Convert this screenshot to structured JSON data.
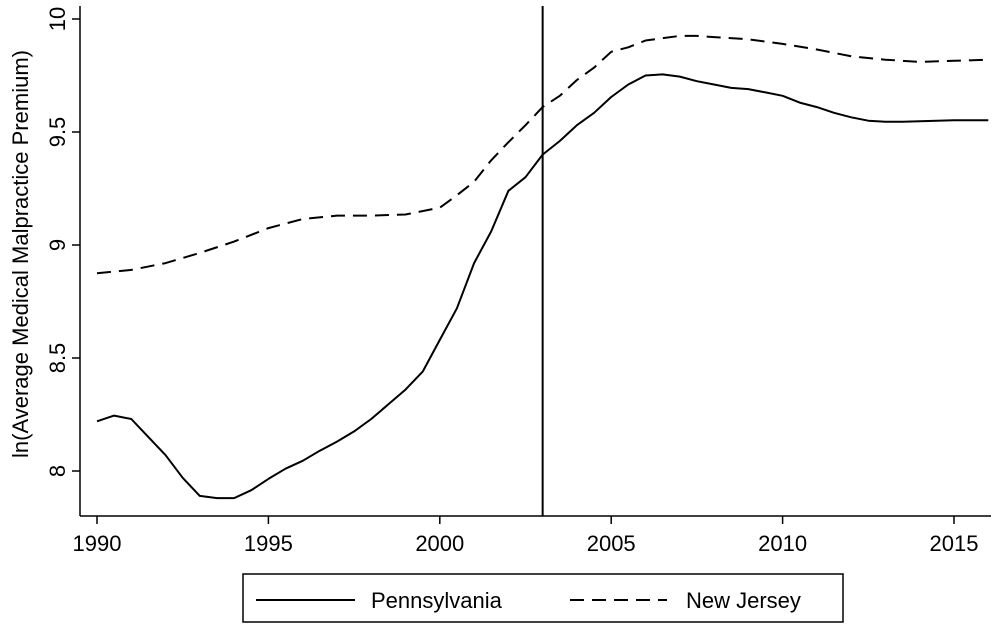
{
  "chart_data": {
    "type": "line",
    "title": "",
    "xlabel": "",
    "ylabel": "ln(Average Medical Malpractice Premium)",
    "xlim": [
      1990,
      2016
    ],
    "ylim": [
      7.8,
      10.05
    ],
    "xticks": [
      1990,
      1995,
      2000,
      2005,
      2010,
      2015
    ],
    "yticks": [
      8,
      8.5,
      9,
      9.5,
      10
    ],
    "ytick_labels": [
      "8",
      "8.5",
      "9",
      "9.5",
      "10"
    ],
    "xtick_labels": [
      "1990",
      "1995",
      "2000",
      "2005",
      "2010",
      "2015"
    ],
    "grid": false,
    "legend_position": "bottom",
    "vertical_reference_line": 2003,
    "series": [
      {
        "name": "Pennsylvania",
        "style": "solid",
        "color": "#000000",
        "x": [
          1990,
          1990.5,
          1991,
          1991.5,
          1992,
          1992.5,
          1993,
          1993.5,
          1994,
          1994.5,
          1995,
          1995.5,
          1996,
          1996.5,
          1997,
          1997.5,
          1998,
          1998.5,
          1999,
          1999.5,
          2000,
          2000.5,
          2001,
          2001.5,
          2002,
          2002.5,
          2003,
          2003.5,
          2004,
          2004.5,
          2005,
          2005.5,
          2006,
          2006.5,
          2007,
          2007.5,
          2008,
          2008.5,
          2009,
          2009.5,
          2010,
          2010.5,
          2011,
          2011.5,
          2012,
          2012.5,
          2013,
          2013.5,
          2014,
          2014.5,
          2015,
          2015.5,
          2016
        ],
        "values": [
          8.22,
          8.245,
          8.23,
          8.15,
          8.07,
          7.97,
          7.89,
          7.88,
          7.88,
          7.915,
          7.965,
          8.01,
          8.045,
          8.09,
          8.13,
          8.175,
          8.23,
          8.295,
          8.36,
          8.44,
          8.58,
          8.72,
          8.92,
          9.06,
          9.24,
          9.3,
          9.4,
          9.46,
          9.53,
          9.585,
          9.655,
          9.71,
          9.75,
          9.755,
          9.745,
          9.725,
          9.71,
          9.695,
          9.69,
          9.675,
          9.66,
          9.63,
          9.61,
          9.585,
          9.565,
          9.55,
          9.545,
          9.545,
          9.548,
          9.55,
          9.552,
          9.552,
          9.552
        ]
      },
      {
        "name": "New Jersey",
        "style": "dashed",
        "color": "#000000",
        "x": [
          1990,
          1991,
          1992,
          1993,
          1994,
          1995,
          1996,
          1997,
          1998,
          1999,
          2000,
          2000.5,
          2001,
          2001.5,
          2002,
          2002.5,
          2003,
          2003.5,
          2004,
          2004.5,
          2005,
          2005.5,
          2006,
          2006.5,
          2007,
          2007.5,
          2008,
          2009,
          2010,
          2011,
          2012,
          2013,
          2014,
          2015,
          2016
        ],
        "values": [
          8.875,
          8.89,
          8.92,
          8.965,
          9.015,
          9.075,
          9.115,
          9.13,
          9.13,
          9.135,
          9.165,
          9.22,
          9.28,
          9.375,
          9.455,
          9.53,
          9.61,
          9.66,
          9.73,
          9.785,
          9.855,
          9.875,
          9.905,
          9.915,
          9.925,
          9.925,
          9.92,
          9.91,
          9.89,
          9.865,
          9.835,
          9.82,
          9.81,
          9.815,
          9.82
        ]
      }
    ]
  }
}
